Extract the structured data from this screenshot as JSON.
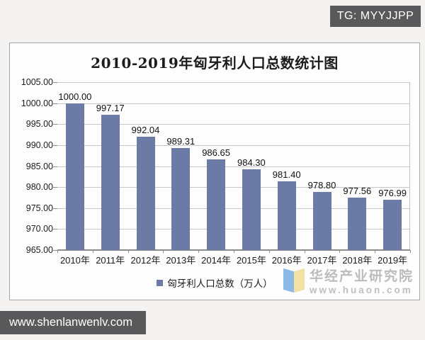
{
  "header": {
    "tg_badge": "TG: MYYJJPP"
  },
  "footer": {
    "site_badge": "www.shenlanwenlv.com"
  },
  "watermark": {
    "name": "华经产业研究院",
    "url": "www.huaon.com"
  },
  "colors": {
    "bar": "#6C7BA6",
    "badge_bg": "#59595b",
    "watermark_logo_blue": "#8cbae8",
    "watermark_logo_yellow": "#f2e2a2"
  },
  "chart_data": {
    "type": "bar",
    "title": "2010-2019年匈牙利人口总数统计图",
    "categories": [
      "2010年",
      "2011年",
      "2012年",
      "2013年",
      "2014年",
      "2015年",
      "2016年",
      "2017年",
      "2018年",
      "2019年"
    ],
    "values": [
      1000.0,
      997.17,
      992.04,
      989.31,
      986.65,
      984.3,
      981.4,
      978.8,
      977.56,
      976.99
    ],
    "legend_label": "匈牙利人口总数（万人）",
    "xlabel": "",
    "ylabel": "",
    "ylim": [
      965,
      1005
    ],
    "ytick_step": 5,
    "ytick_format_decimals": 2,
    "value_label_decimals": 2,
    "grid": true,
    "legend_position": "bottom"
  }
}
